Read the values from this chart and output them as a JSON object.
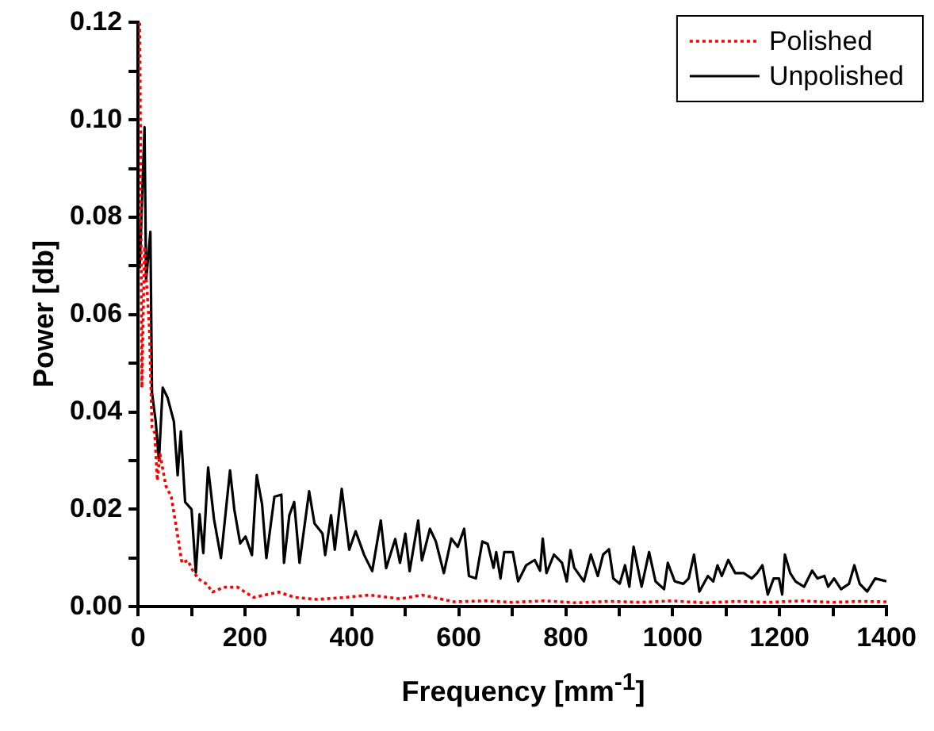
{
  "chart_data": {
    "type": "line",
    "xlabel": "Frequency [mm$^{-1}$]",
    "ylabel": "Power [db]",
    "xlim": [
      0,
      1400
    ],
    "ylim": [
      0,
      0.12
    ],
    "xticks": [
      0,
      {
        "value": 100,
        "label": null
      },
      200,
      {
        "value": 300,
        "label": null
      },
      400,
      {
        "value": 500,
        "label": null
      },
      600,
      {
        "value": 700,
        "label": null
      },
      800,
      {
        "value": 900,
        "label": null
      },
      1000,
      {
        "value": 1100,
        "label": null
      },
      1200,
      {
        "value": 1300,
        "label": null
      },
      1400
    ],
    "yticks": [
      {
        "value": 0,
        "label": "0.00"
      },
      {
        "value": 0.01,
        "label": null
      },
      {
        "value": 0.02,
        "label": "0.02"
      },
      {
        "value": 0.03,
        "label": null
      },
      {
        "value": 0.04,
        "label": "0.04"
      },
      {
        "value": 0.05,
        "label": null
      },
      {
        "value": 0.06,
        "label": "0.06"
      },
      {
        "value": 0.07,
        "label": null
      },
      {
        "value": 0.08,
        "label": "0.08"
      },
      {
        "value": 0.09,
        "label": null
      },
      {
        "value": 0.1,
        "label": "0.10"
      },
      {
        "value": 0.11,
        "label": null
      },
      {
        "value": 0.12,
        "label": "0.12"
      }
    ],
    "grid": false,
    "legend": "top right",
    "marker": "none",
    "series": [
      {
        "name": "Polished",
        "color": "#ff0000",
        "line_style": "dotted",
        "x": [
          3,
          5,
          7,
          12,
          15,
          21,
          26,
          31,
          36,
          41,
          52,
          62,
          72,
          82,
          93,
          103,
          113,
          129,
          139,
          160,
          186,
          216,
          263,
          294,
          335,
          387,
          433,
          490,
          531,
          591,
          650,
          700,
          760,
          820,
          880,
          940,
          1000,
          1060,
          1120,
          1180,
          1240,
          1300,
          1350,
          1400
        ],
        "values": [
          0.12,
          0.09,
          0.045,
          0.074,
          0.068,
          0.0575,
          0.0368,
          0.0357,
          0.0259,
          0.0313,
          0.0248,
          0.0226,
          0.016,
          0.009,
          0.0095,
          0.0073,
          0.0057,
          0.0046,
          0.003,
          0.004,
          0.004,
          0.0019,
          0.003,
          0.0019,
          0.0015,
          0.0019,
          0.0024,
          0.0016,
          0.0024,
          0.001,
          0.0012,
          0.0009,
          0.0012,
          0.0008,
          0.0011,
          0.0009,
          0.0012,
          0.0008,
          0.0011,
          0.0009,
          0.0012,
          0.0009,
          0.0011,
          0.001
        ]
      },
      {
        "name": "Unpolished",
        "color": "#000000",
        "line_style": "solid",
        "x": [
          3,
          12,
          15,
          23,
          26,
          33,
          39,
          46,
          55,
          67,
          74,
          80,
          88,
          100,
          108,
          115,
          122,
          131,
          142,
          155,
          172,
          180,
          191,
          201,
          213,
          222,
          232,
          240,
          255,
          268,
          273,
          283,
          292,
          302,
          320,
          330,
          345,
          350,
          361,
          368,
          381,
          395,
          407,
          423,
          438,
          454,
          464,
          481,
          490,
          500,
          508,
          524,
          531,
          546,
          557,
          572,
          586,
          598,
          610,
          619,
          632,
          644,
          654,
          665,
          670,
          678,
          685,
          701,
          711,
          726,
          742,
          752,
          757,
          764,
          778,
          793,
          802,
          809,
          816,
          834,
          847,
          860,
          870,
          881,
          889,
          901,
          911,
          919,
          927,
          942,
          956,
          968,
          984,
          991,
          1004,
          1020,
          1030,
          1040,
          1050,
          1066,
          1076,
          1084,
          1092,
          1104,
          1117,
          1133,
          1148,
          1158,
          1168,
          1178,
          1189,
          1199,
          1205,
          1210,
          1220,
          1230,
          1246,
          1261,
          1271,
          1284,
          1291,
          1302,
          1315,
          1330,
          1340,
          1350,
          1364,
          1379,
          1400
        ],
        "values": [
          0.0695,
          0.0985,
          0.067,
          0.077,
          0.044,
          0.038,
          0.03,
          0.045,
          0.043,
          0.038,
          0.027,
          0.036,
          0.0215,
          0.02,
          0.007,
          0.019,
          0.011,
          0.0286,
          0.018,
          0.01,
          0.028,
          0.02,
          0.013,
          0.0144,
          0.0106,
          0.027,
          0.021,
          0.01,
          0.0226,
          0.023,
          0.009,
          0.0188,
          0.0215,
          0.009,
          0.0237,
          0.0171,
          0.015,
          0.0106,
          0.0188,
          0.0117,
          0.0242,
          0.0117,
          0.0155,
          0.0106,
          0.0073,
          0.0177,
          0.0079,
          0.0139,
          0.009,
          0.015,
          0.0073,
          0.0177,
          0.0095,
          0.016,
          0.0134,
          0.0069,
          0.014,
          0.0123,
          0.016,
          0.0063,
          0.0058,
          0.0134,
          0.0129,
          0.008,
          0.0112,
          0.0058,
          0.0112,
          0.0112,
          0.0052,
          0.0085,
          0.0096,
          0.0074,
          0.014,
          0.0069,
          0.0107,
          0.009,
          0.0052,
          0.0116,
          0.008,
          0.0052,
          0.0107,
          0.0063,
          0.0107,
          0.0118,
          0.0058,
          0.0047,
          0.0085,
          0.0041,
          0.0123,
          0.0041,
          0.0112,
          0.0052,
          0.0036,
          0.009,
          0.0052,
          0.0047,
          0.0058,
          0.0107,
          0.0031,
          0.0063,
          0.0052,
          0.0085,
          0.0063,
          0.0096,
          0.0069,
          0.0069,
          0.0058,
          0.0069,
          0.0085,
          0.0025,
          0.0058,
          0.0058,
          0.0025,
          0.0107,
          0.0069,
          0.0052,
          0.0041,
          0.0074,
          0.0058,
          0.0063,
          0.0041,
          0.0058,
          0.0036,
          0.0047,
          0.0085,
          0.0047,
          0.0031,
          0.0058,
          0.0052
        ]
      }
    ]
  }
}
